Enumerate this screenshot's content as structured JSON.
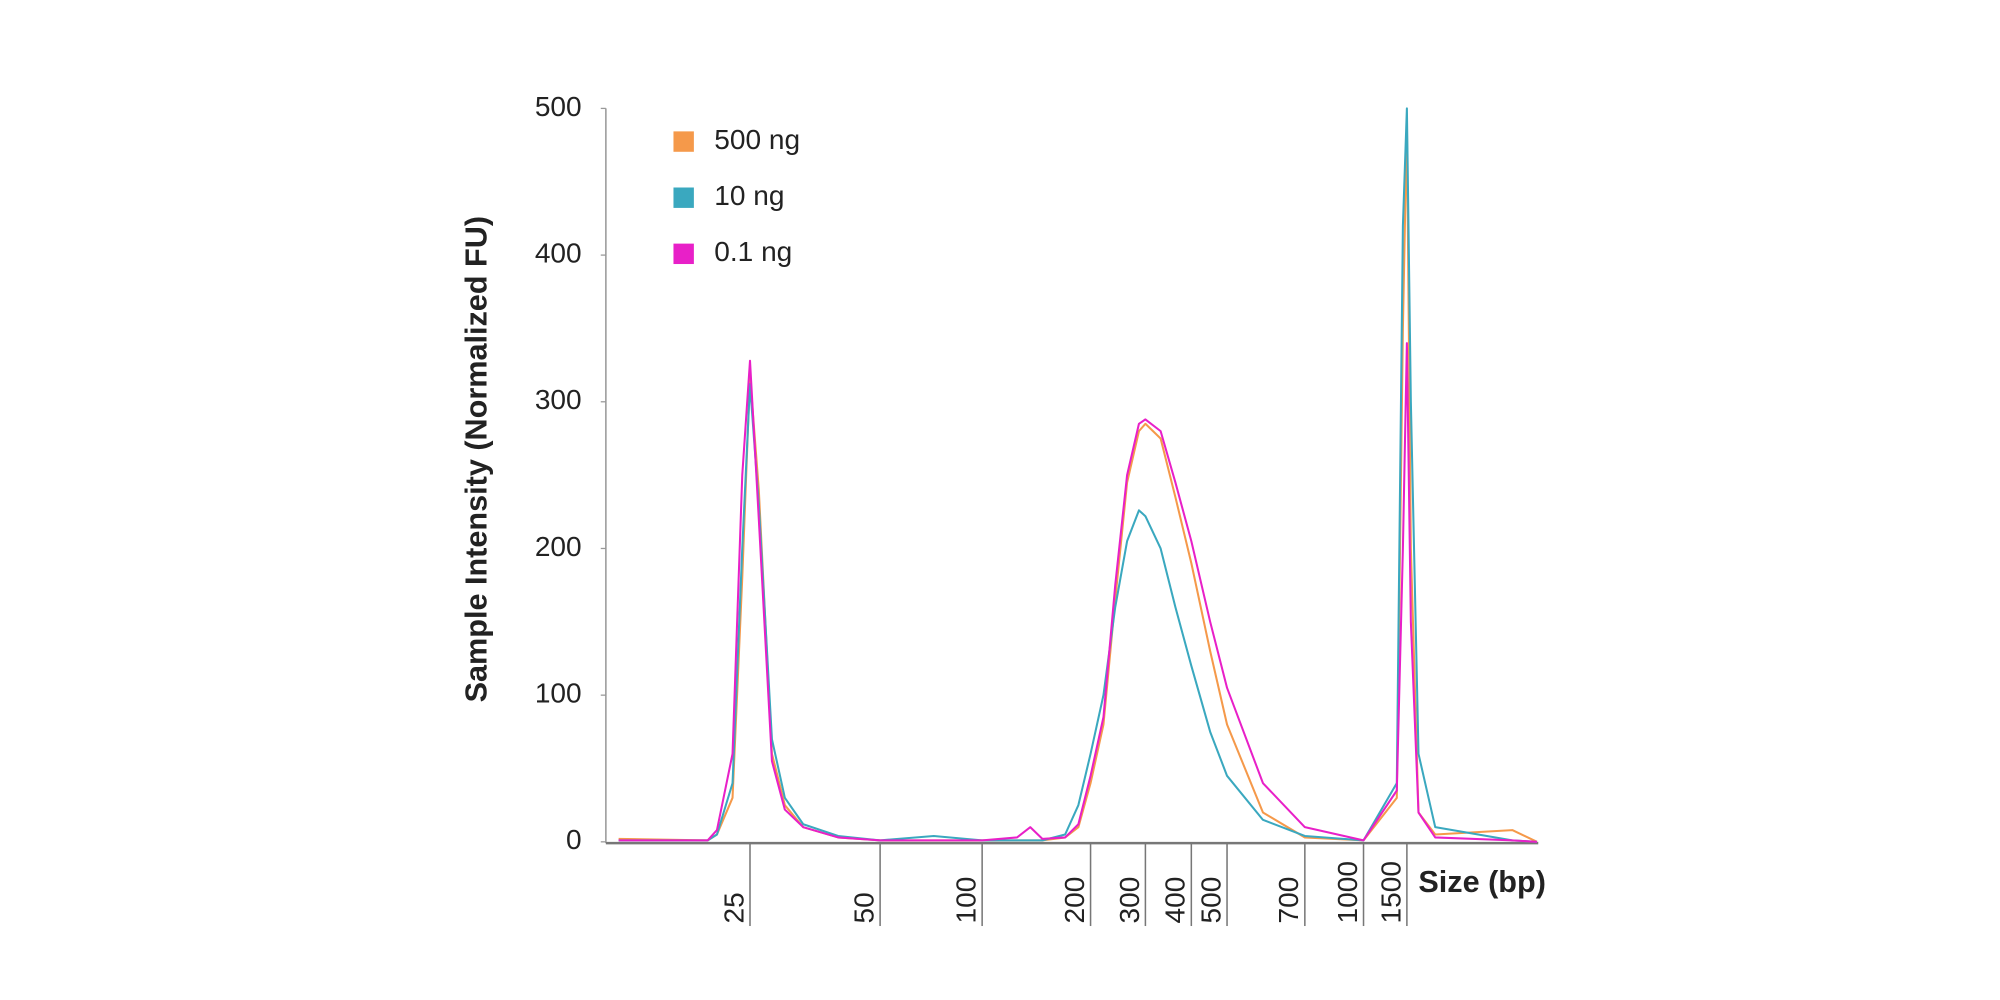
{
  "chart_data": {
    "type": "line",
    "y_label": "Sample Intensity (Normalized FU)",
    "x_label": "Size (bp)",
    "x": [
      12.5,
      20,
      21,
      22.8,
      24,
      25,
      26.2,
      28.1,
      30.1,
      33.2,
      40,
      50,
      72,
      100,
      125,
      136,
      147,
      170,
      185,
      200,
      220,
      240,
      262,
      286,
      300,
      330,
      362,
      400,
      450,
      500,
      584,
      700,
      1000,
      1365,
      1445,
      1500,
      1556,
      1670,
      1950,
      3980,
      5000
    ],
    "series": [
      {
        "name": "500 ng",
        "color": "#f5994a",
        "values": [
          2,
          1,
          5,
          30,
          180,
          318,
          240,
          60,
          25,
          10,
          3,
          1,
          1,
          1,
          1,
          1,
          1,
          3,
          10,
          40,
          80,
          165,
          245,
          280,
          285,
          275,
          235,
          190,
          130,
          80,
          20,
          3,
          1,
          30,
          350,
          490,
          200,
          20,
          5,
          8,
          0
        ]
      },
      {
        "name": "10 ng",
        "color": "#3aa8bf",
        "values": [
          1,
          1,
          5,
          40,
          200,
          312,
          230,
          70,
          30,
          12,
          4,
          1,
          4,
          1,
          1,
          1,
          1,
          5,
          25,
          60,
          100,
          160,
          205,
          226,
          222,
          200,
          160,
          120,
          75,
          45,
          15,
          4,
          1,
          40,
          420,
          500,
          300,
          60,
          10,
          1,
          0
        ]
      },
      {
        "name": "0.1 ng",
        "color": "#e820c8",
        "values": [
          1,
          1,
          8,
          60,
          250,
          328,
          220,
          55,
          22,
          10,
          3,
          1,
          1,
          1,
          3,
          10,
          2,
          3,
          12,
          45,
          85,
          175,
          250,
          285,
          288,
          280,
          245,
          205,
          150,
          105,
          40,
          10,
          1,
          35,
          200,
          340,
          150,
          20,
          3,
          1,
          0
        ]
      }
    ],
    "xlim": [
      12.5,
      5000
    ],
    "xticks": [
      25,
      50,
      100,
      200,
      300,
      400,
      500,
      700,
      1000,
      1500
    ],
    "ylim": [
      0,
      500
    ],
    "yticks": [
      0,
      100,
      200,
      300,
      400,
      500
    ],
    "grid": false,
    "legend": "upper left"
  }
}
